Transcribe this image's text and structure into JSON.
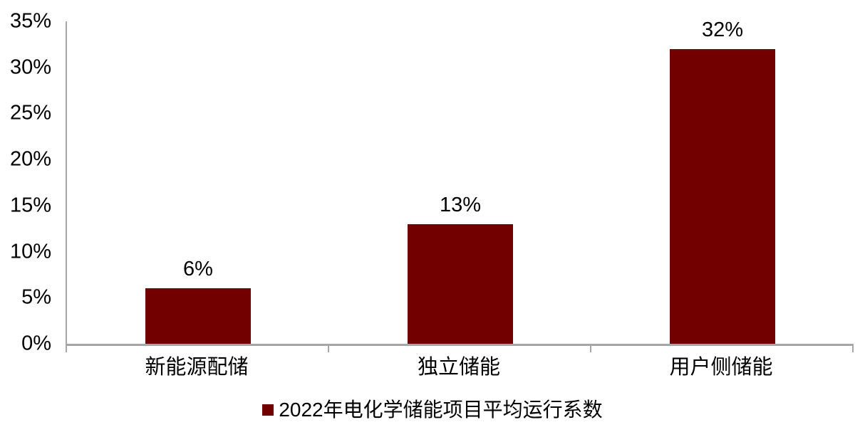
{
  "chart_data": {
    "type": "bar",
    "categories": [
      "新能源配储",
      "独立储能",
      "用户侧储能"
    ],
    "values": [
      6,
      13,
      32
    ],
    "value_labels": [
      "6%",
      "13%",
      "32%"
    ],
    "title": "",
    "xlabel": "",
    "ylabel": "",
    "ylim": [
      0,
      35
    ],
    "ytick_step": 5,
    "ytick_labels": [
      "0%",
      "5%",
      "10%",
      "15%",
      "20%",
      "25%",
      "30%",
      "35%"
    ],
    "grid": false,
    "legend_position": "bottom",
    "legend": [
      {
        "label": "2022年电化学储能项目平均运行系数",
        "color": "#730000"
      }
    ],
    "colors": {
      "bar": "#730000",
      "axis": "#a6a6a6",
      "text": "#000000",
      "background": "#ffffff"
    }
  }
}
